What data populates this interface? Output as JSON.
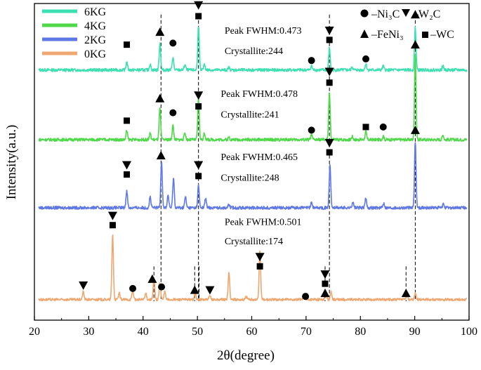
{
  "chart_data": {
    "type": "line",
    "xlabel": "2θ(degree)",
    "ylabel": "Intensity(a.u.)",
    "xlim": [
      20,
      100
    ],
    "x_ticks": [
      20,
      30,
      40,
      50,
      60,
      70,
      80,
      90,
      100
    ],
    "legend": {
      "placement": "top-left",
      "entries": [
        {
          "name": "6KG",
          "color": "#3de0b0"
        },
        {
          "name": "4KG",
          "color": "#4fd84a"
        },
        {
          "name": "2KG",
          "color": "#5f78e6"
        },
        {
          "name": "0KG",
          "color": "#eea770"
        }
      ]
    },
    "phase_legend": {
      "placement": "top-right",
      "ni3c": "–Ni₃C",
      "w2c": "–W₂C",
      "feni3": "–FeNi₃",
      "wc": "–WC"
    },
    "series": [
      {
        "name": "6KG",
        "color": "#3de0b0",
        "baseline": 0.79,
        "noise": 0.006,
        "peaks": [
          [
            37.0,
            0.025
          ],
          [
            41.3,
            0.018
          ],
          [
            43.1,
            0.085
          ],
          [
            45.5,
            0.04
          ],
          [
            47.7,
            0.018
          ],
          [
            50.2,
            0.14
          ],
          [
            51.3,
            0.018
          ],
          [
            55.8,
            0.008
          ],
          [
            71.0,
            0.013
          ],
          [
            74.3,
            0.07
          ],
          [
            78.5,
            0.01
          ],
          [
            81.0,
            0.02
          ],
          [
            84.2,
            0.012
          ],
          [
            90.1,
            0.135
          ],
          [
            95.2,
            0.012
          ]
        ]
      },
      {
        "name": "4KG",
        "color": "#4fd84a",
        "baseline": 0.57,
        "noise": 0.006,
        "peaks": [
          [
            37.0,
            0.028
          ],
          [
            41.3,
            0.02
          ],
          [
            43.1,
            0.1
          ],
          [
            45.5,
            0.045
          ],
          [
            47.7,
            0.022
          ],
          [
            50.2,
            0.13
          ],
          [
            51.3,
            0.02
          ],
          [
            55.8,
            0.008
          ],
          [
            71.0,
            0.015
          ],
          [
            74.3,
            0.15
          ],
          [
            78.5,
            0.01
          ],
          [
            81.0,
            0.025
          ],
          [
            84.2,
            0.012
          ],
          [
            90.1,
            0.27
          ],
          [
            95.2,
            0.015
          ]
        ]
      },
      {
        "name": "2KG",
        "color": "#5f78e6",
        "baseline": 0.355,
        "noise": 0.006,
        "peaks": [
          [
            37.0,
            0.055
          ],
          [
            41.3,
            0.035
          ],
          [
            43.4,
            0.15
          ],
          [
            44.6,
            0.04
          ],
          [
            45.6,
            0.095
          ],
          [
            47.8,
            0.035
          ],
          [
            50.2,
            0.07
          ],
          [
            51.5,
            0.03
          ],
          [
            55.8,
            0.01
          ],
          [
            71.0,
            0.018
          ],
          [
            74.4,
            0.135
          ],
          [
            78.6,
            0.018
          ],
          [
            81.0,
            0.03
          ],
          [
            84.3,
            0.015
          ],
          [
            90.1,
            0.21
          ],
          [
            95.3,
            0.012
          ]
        ]
      },
      {
        "name": "0KG",
        "color": "#eea770",
        "baseline": 0.065,
        "noise": 0.005,
        "peaks": [
          [
            29.0,
            0.025
          ],
          [
            34.4,
            0.205
          ],
          [
            35.6,
            0.02
          ],
          [
            38.1,
            0.03
          ],
          [
            40.5,
            0.02
          ],
          [
            42.0,
            0.065
          ],
          [
            43.1,
            0.055
          ],
          [
            44.0,
            0.025
          ],
          [
            49.6,
            0.02
          ],
          [
            52.3,
            0.012
          ],
          [
            55.8,
            0.085
          ],
          [
            59.0,
            0.01
          ],
          [
            61.5,
            0.155
          ],
          [
            69.5,
            0.01
          ],
          [
            73.6,
            0.03
          ],
          [
            74.6,
            0.025
          ],
          [
            88.6,
            0.012
          ],
          [
            90.1,
            0.02
          ]
        ]
      }
    ],
    "dashed_lines": [
      43.3,
      50.2,
      74.3,
      90.1
    ],
    "dashed_lines_0kg": [
      42.0,
      49.5,
      50.3,
      73.5,
      88.4
    ],
    "markers": [
      {
        "type": "square",
        "x": 37.0,
        "y": 0.87
      },
      {
        "type": "triangle",
        "x": 43.1,
        "y": 0.91
      },
      {
        "type": "circle",
        "x": 45.5,
        "y": 0.875
      },
      {
        "type": "square",
        "x": 50.2,
        "y": 0.96
      },
      {
        "type": "tri-down",
        "x": 50.2,
        "y": 0.995
      },
      {
        "type": "square",
        "x": 74.3,
        "y": 0.885
      },
      {
        "type": "tri-down",
        "x": 74.3,
        "y": 0.915
      },
      {
        "type": "circle",
        "x": 71.0,
        "y": 0.82
      },
      {
        "type": "circle",
        "x": 81.0,
        "y": 0.825
      },
      {
        "type": "triangle",
        "x": 90.1,
        "y": 0.965
      },
      {
        "type": "square",
        "x": 37.0,
        "y": 0.63
      },
      {
        "type": "triangle",
        "x": 43.1,
        "y": 0.7
      },
      {
        "type": "circle",
        "x": 45.5,
        "y": 0.655
      },
      {
        "type": "square",
        "x": 50.2,
        "y": 0.675
      },
      {
        "type": "tri-down",
        "x": 50.2,
        "y": 0.71
      },
      {
        "type": "square",
        "x": 74.3,
        "y": 0.75
      },
      {
        "type": "tri-down",
        "x": 74.3,
        "y": 0.785
      },
      {
        "type": "circle",
        "x": 71.0,
        "y": 0.6
      },
      {
        "type": "square",
        "x": 81.0,
        "y": 0.61
      },
      {
        "type": "circle",
        "x": 84.2,
        "y": 0.61
      },
      {
        "type": "triangle",
        "x": 90.1,
        "y": 0.87
      },
      {
        "type": "square",
        "x": 37.0,
        "y": 0.46
      },
      {
        "type": "tri-down",
        "x": 37.0,
        "y": 0.49
      },
      {
        "type": "triangle",
        "x": 43.3,
        "y": 0.52
      },
      {
        "type": "square",
        "x": 50.2,
        "y": 0.455
      },
      {
        "type": "tri-down",
        "x": 50.2,
        "y": 0.49
      },
      {
        "type": "square",
        "x": 74.3,
        "y": 0.53
      },
      {
        "type": "tri-down",
        "x": 74.3,
        "y": 0.56
      },
      {
        "type": "triangle",
        "x": 90.1,
        "y": 0.6
      },
      {
        "type": "tri-down",
        "x": 29.0,
        "y": 0.11
      },
      {
        "type": "square",
        "x": 34.4,
        "y": 0.3
      },
      {
        "type": "tri-down",
        "x": 34.4,
        "y": 0.33
      },
      {
        "type": "circle",
        "x": 38.1,
        "y": 0.1
      },
      {
        "type": "triangle",
        "x": 41.7,
        "y": 0.13
      },
      {
        "type": "circle",
        "x": 43.4,
        "y": 0.105
      },
      {
        "type": "triangle",
        "x": 49.5,
        "y": 0.095
      },
      {
        "type": "tri-down",
        "x": 52.3,
        "y": 0.095
      },
      {
        "type": "square",
        "x": 61.5,
        "y": 0.17
      },
      {
        "type": "tri-down",
        "x": 61.5,
        "y": 0.2
      },
      {
        "type": "circle",
        "x": 69.9,
        "y": 0.075
      },
      {
        "type": "triangle",
        "x": 73.5,
        "y": 0.085
      },
      {
        "type": "square",
        "x": 73.5,
        "y": 0.115
      },
      {
        "type": "tri-down",
        "x": 73.5,
        "y": 0.145
      },
      {
        "type": "triangle",
        "x": 88.4,
        "y": 0.085
      }
    ],
    "annotations": [
      {
        "fwhm": "Peak FWHM:0.473",
        "cryst": "Crystallite:244",
        "x": 55.0,
        "y_fwhm": 0.905,
        "y_cryst": 0.84
      },
      {
        "fwhm": "Peak FWHM:0.478",
        "cryst": "Crystallite:241",
        "x": 54.3,
        "y_fwhm": 0.705,
        "y_cryst": 0.64
      },
      {
        "fwhm": "Peak FWHM:0.465",
        "cryst": "Crystallite:248",
        "x": 54.3,
        "y_fwhm": 0.505,
        "y_cryst": 0.44
      },
      {
        "fwhm": "Peak FWHM:0.501",
        "cryst": "Crystallite:174",
        "x": 55.0,
        "y_fwhm": 0.3,
        "y_cryst": 0.24
      }
    ]
  }
}
